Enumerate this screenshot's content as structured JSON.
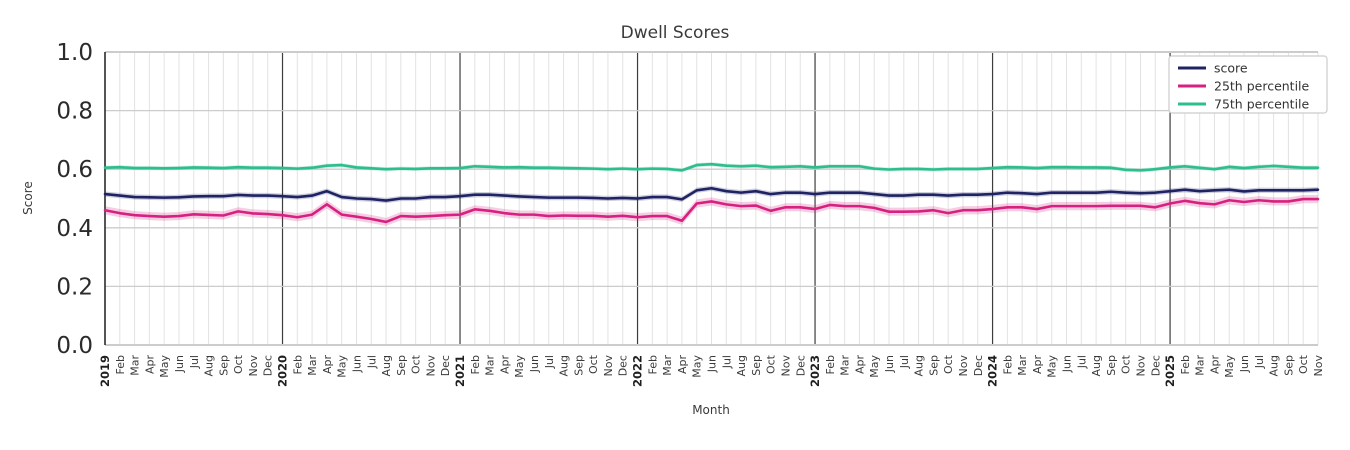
{
  "chart_data": {
    "type": "line",
    "title": "Dwell Scores",
    "xlabel": "Month",
    "ylabel": "Score",
    "ylim": [
      0.0,
      1.0
    ],
    "yticks": [
      0.0,
      0.2,
      0.4,
      0.6,
      0.8,
      1.0
    ],
    "grid": "on",
    "legend_position": "upper right",
    "categories": [
      "2019",
      "Feb",
      "Mar",
      "Apr",
      "May",
      "Jun",
      "Jul",
      "Aug",
      "Sep",
      "Oct",
      "Nov",
      "Dec",
      "2020",
      "Feb",
      "Mar",
      "Apr",
      "May",
      "Jun",
      "Jul",
      "Aug",
      "Sep",
      "Oct",
      "Nov",
      "Dec",
      "2021",
      "Feb",
      "Mar",
      "Apr",
      "May",
      "Jun",
      "Jul",
      "Aug",
      "Sep",
      "Oct",
      "Nov",
      "Dec",
      "2022",
      "Feb",
      "Mar",
      "Apr",
      "May",
      "Jun",
      "Jul",
      "Aug",
      "Sep",
      "Oct",
      "Nov",
      "Dec",
      "2023",
      "Feb",
      "Mar",
      "Apr",
      "May",
      "Jun",
      "Jul",
      "Aug",
      "Sep",
      "Oct",
      "Nov",
      "Dec",
      "2024",
      "Feb",
      "Mar",
      "Apr",
      "May",
      "Jun",
      "Jul",
      "Aug",
      "Sep",
      "Oct",
      "Nov",
      "Dec",
      "2025",
      "Feb",
      "Mar",
      "Apr",
      "May",
      "Jun",
      "Jul",
      "Aug",
      "Sep",
      "Oct",
      "Nov"
    ],
    "series": [
      {
        "name": "score",
        "color": "#1f2363",
        "band_halfwidth": 0.009,
        "values": [
          0.515,
          0.51,
          0.505,
          0.504,
          0.503,
          0.504,
          0.507,
          0.508,
          0.508,
          0.512,
          0.51,
          0.51,
          0.508,
          0.505,
          0.51,
          0.525,
          0.505,
          0.5,
          0.498,
          0.493,
          0.5,
          0.5,
          0.505,
          0.505,
          0.508,
          0.513,
          0.513,
          0.51,
          0.507,
          0.505,
          0.503,
          0.503,
          0.503,
          0.502,
          0.5,
          0.502,
          0.5,
          0.505,
          0.505,
          0.497,
          0.528,
          0.535,
          0.525,
          0.52,
          0.525,
          0.515,
          0.52,
          0.52,
          0.515,
          0.52,
          0.52,
          0.52,
          0.515,
          0.51,
          0.51,
          0.513,
          0.513,
          0.51,
          0.513,
          0.513,
          0.515,
          0.52,
          0.518,
          0.515,
          0.52,
          0.52,
          0.52,
          0.52,
          0.523,
          0.52,
          0.518,
          0.52,
          0.525,
          0.53,
          0.525,
          0.528,
          0.53,
          0.524,
          0.528,
          0.528,
          0.528,
          0.528,
          0.53
        ]
      },
      {
        "name": "25th percentile",
        "color": "#d62180",
        "band_halfwidth": 0.014,
        "values": [
          0.46,
          0.45,
          0.443,
          0.44,
          0.438,
          0.44,
          0.446,
          0.444,
          0.442,
          0.456,
          0.449,
          0.447,
          0.443,
          0.436,
          0.445,
          0.48,
          0.445,
          0.438,
          0.43,
          0.42,
          0.44,
          0.438,
          0.44,
          0.443,
          0.445,
          0.463,
          0.458,
          0.45,
          0.445,
          0.445,
          0.44,
          0.442,
          0.441,
          0.441,
          0.438,
          0.441,
          0.436,
          0.44,
          0.44,
          0.424,
          0.483,
          0.49,
          0.48,
          0.474,
          0.476,
          0.458,
          0.47,
          0.47,
          0.464,
          0.478,
          0.474,
          0.474,
          0.468,
          0.455,
          0.455,
          0.456,
          0.46,
          0.45,
          0.46,
          0.46,
          0.464,
          0.47,
          0.47,
          0.464,
          0.474,
          0.474,
          0.474,
          0.474,
          0.475,
          0.475,
          0.475,
          0.47,
          0.483,
          0.492,
          0.484,
          0.48,
          0.494,
          0.488,
          0.494,
          0.49,
          0.49,
          0.498,
          0.498
        ]
      },
      {
        "name": "75th percentile",
        "color": "#2dbd8e",
        "band_halfwidth": 0.007,
        "values": [
          0.605,
          0.607,
          0.604,
          0.604,
          0.603,
          0.604,
          0.606,
          0.605,
          0.604,
          0.607,
          0.605,
          0.605,
          0.604,
          0.602,
          0.605,
          0.612,
          0.614,
          0.606,
          0.603,
          0.6,
          0.602,
          0.601,
          0.603,
          0.603,
          0.604,
          0.61,
          0.608,
          0.606,
          0.607,
          0.605,
          0.605,
          0.604,
          0.603,
          0.602,
          0.6,
          0.602,
          0.6,
          0.602,
          0.601,
          0.596,
          0.614,
          0.617,
          0.612,
          0.61,
          0.612,
          0.607,
          0.608,
          0.61,
          0.606,
          0.61,
          0.61,
          0.61,
          0.602,
          0.599,
          0.601,
          0.601,
          0.599,
          0.601,
          0.601,
          0.601,
          0.604,
          0.607,
          0.606,
          0.604,
          0.607,
          0.607,
          0.606,
          0.606,
          0.605,
          0.598,
          0.596,
          0.6,
          0.606,
          0.61,
          0.605,
          0.6,
          0.608,
          0.604,
          0.608,
          0.611,
          0.608,
          0.605,
          0.605
        ]
      }
    ],
    "colors": {
      "grid_minor": "#e2e2e2",
      "grid_major": "#cccccc",
      "year_line": "#3d3d3d",
      "left_spine": "#2b2b2b",
      "legend_border": "#cccccc"
    }
  }
}
